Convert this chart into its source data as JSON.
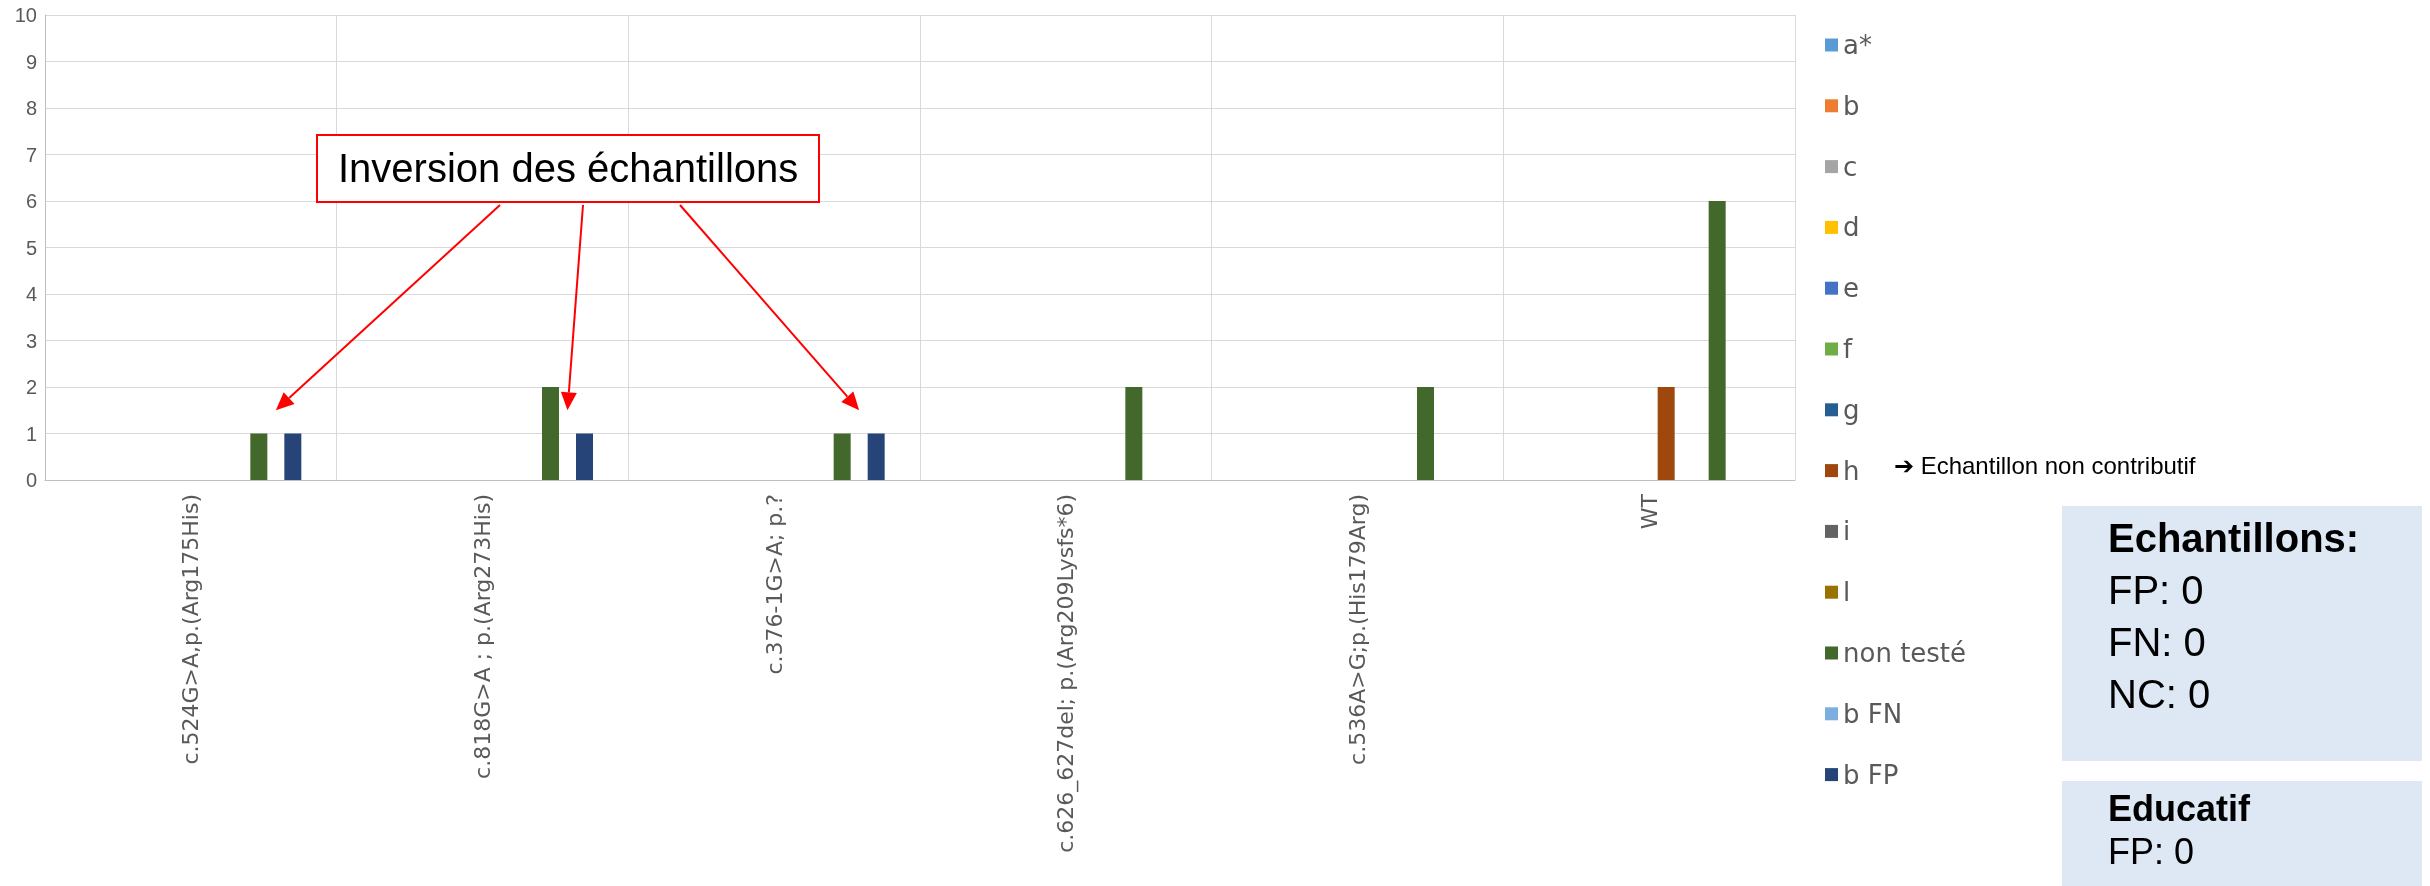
{
  "chart_data": {
    "type": "bar",
    "categories": [
      "c.524G>A,p.(Arg175His)",
      "c.818G>A ; p.(Arg273His)",
      "c.376-1G>A; p.?",
      "c.626_627del; p.(Arg209Lysfs*6)",
      "c.536A>G;p.(His179Arg)",
      "WT"
    ],
    "series": [
      {
        "name": "a*",
        "color": "#5b9bd5",
        "values": [
          0,
          0,
          0,
          0,
          0,
          0
        ]
      },
      {
        "name": "b",
        "color": "#ed7d31",
        "values": [
          0,
          0,
          0,
          0,
          0,
          0
        ]
      },
      {
        "name": "c",
        "color": "#a5a5a5",
        "values": [
          0,
          0,
          0,
          0,
          0,
          0
        ]
      },
      {
        "name": "d",
        "color": "#ffc000",
        "values": [
          0,
          0,
          0,
          0,
          0,
          0
        ]
      },
      {
        "name": "e",
        "color": "#4472c4",
        "values": [
          0,
          0,
          0,
          0,
          0,
          0
        ]
      },
      {
        "name": "f",
        "color": "#70ad47",
        "values": [
          0,
          0,
          0,
          0,
          0,
          0
        ]
      },
      {
        "name": "g",
        "color": "#255e91",
        "values": [
          0,
          0,
          0,
          0,
          0,
          0
        ]
      },
      {
        "name": "h",
        "color": "#9e480e",
        "values": [
          0,
          0,
          0,
          0,
          0,
          2
        ]
      },
      {
        "name": "i",
        "color": "#636363",
        "values": [
          0,
          0,
          0,
          0,
          0,
          0
        ]
      },
      {
        "name": "l",
        "color": "#997300",
        "values": [
          0,
          0,
          0,
          0,
          0,
          0
        ]
      },
      {
        "name": "non testé",
        "color": "#43682b",
        "values": [
          1,
          2,
          1,
          2,
          2,
          6
        ]
      },
      {
        "name": "b FN",
        "color": "#7cafdd",
        "values": [
          0,
          0,
          0,
          0,
          0,
          0
        ]
      },
      {
        "name": "b FP",
        "color": "#264478",
        "values": [
          1,
          1,
          1,
          0,
          0,
          0
        ]
      }
    ],
    "ylim": [
      0,
      10
    ],
    "yticks": [
      0,
      1,
      2,
      3,
      4,
      5,
      6,
      7,
      8,
      9,
      10
    ],
    "grid": true,
    "legend": "right",
    "annotations": [
      "Inversion des échantillons",
      "➔ Echantillon non contributif",
      "Echantillons:\nFP: 0\nFN: 0\nNC: 0",
      "Educatif\nFP: 0"
    ]
  }
}
